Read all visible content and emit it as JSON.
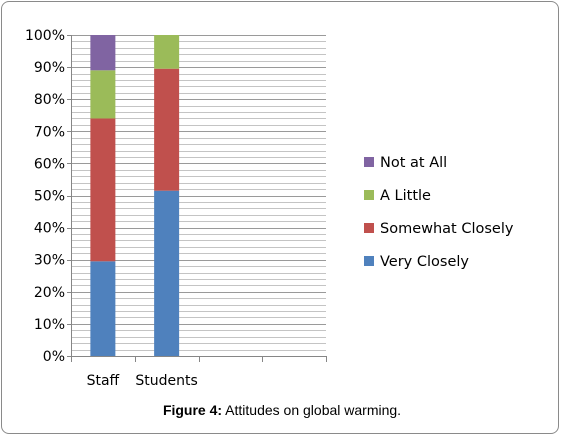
{
  "chart_data": {
    "type": "bar",
    "stacked": true,
    "categories": [
      "Staff",
      "Students"
    ],
    "series": [
      {
        "name": "Very Closely",
        "values": [
          29.5,
          51.5
        ],
        "color": "#4f81bd"
      },
      {
        "name": "Somewhat Closely",
        "values": [
          44.5,
          38
        ],
        "color": "#c0504d"
      },
      {
        "name": "A Little",
        "values": [
          15,
          10.5
        ],
        "color": "#9bbb59"
      },
      {
        "name": "Not at All",
        "values": [
          11,
          0
        ],
        "color": "#8064a2"
      }
    ],
    "ylim": [
      0,
      100
    ],
    "yticks": [
      "0%",
      "10%",
      "20%",
      "30%",
      "40%",
      "50%",
      "60%",
      "70%",
      "80%",
      "90%",
      "100%"
    ],
    "grid": true,
    "legend_position": "right"
  },
  "caption": {
    "label": "Figure 4:",
    "text": " Attitudes on global warming."
  }
}
